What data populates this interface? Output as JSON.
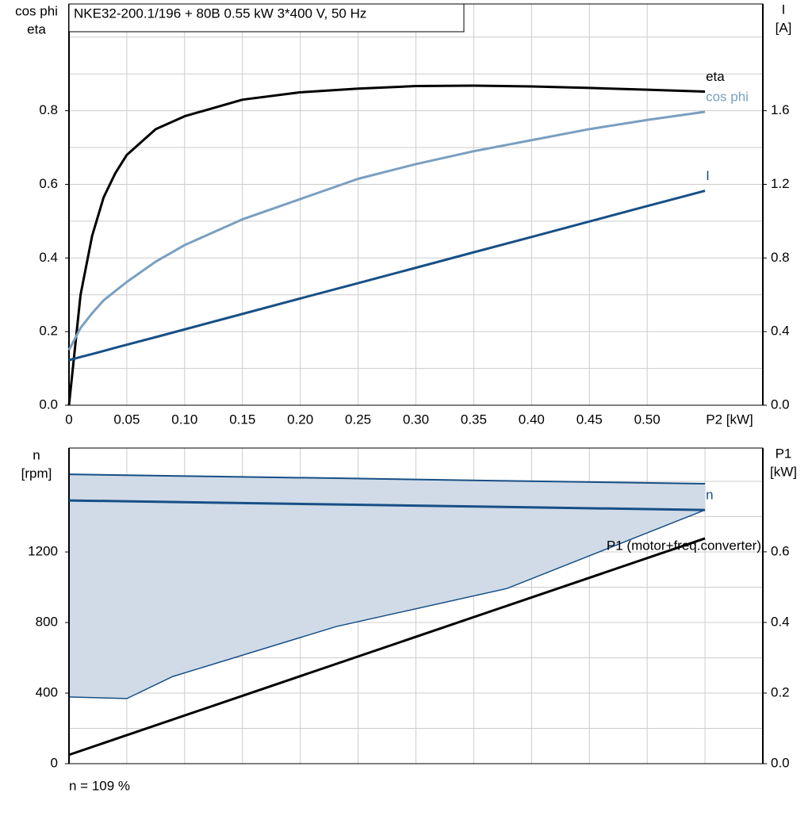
{
  "chart_data": [
    {
      "type": "line",
      "title": "NKE32-200.1/196 + 80B   0.55 kW   3*400 V, 50 Hz",
      "ylabel": [
        "cos phi",
        "eta"
      ],
      "y2label": [
        "I",
        "[A]"
      ],
      "xlabel": "P2 [kW]",
      "xlim": [
        0,
        0.6
      ],
      "ylim": [
        0,
        1.09
      ],
      "y2lim": [
        0,
        2.18
      ],
      "xticks": [
        0,
        0.05,
        {
          "value": 0.1,
          "label": "0.10"
        },
        0.15,
        {
          "value": 0.2,
          "label": "0.20"
        },
        0.25,
        {
          "value": 0.3,
          "label": "0.30"
        },
        0.35,
        {
          "value": 0.4,
          "label": "0.40"
        },
        0.45,
        {
          "value": 0.5,
          "label": "0.50"
        }
      ],
      "yticks": [
        {
          "value": 0,
          "label": "0.0"
        },
        0.2,
        0.4,
        0.6,
        0.8
      ],
      "ygrid": [
        0.1,
        0.3,
        0.5,
        0.7,
        0.9,
        1.0
      ],
      "y2ticks": [
        {
          "value": 0,
          "label": "0.0"
        },
        0.4,
        0.8,
        1.2,
        1.6
      ],
      "grid": true,
      "x": [
        0,
        0.01,
        0.02,
        0.03,
        0.04,
        0.05,
        0.075,
        0.1,
        0.15,
        0.2,
        0.25,
        0.3,
        0.35,
        0.4,
        0.45,
        0.5,
        0.55
      ],
      "series": [
        {
          "name": "eta",
          "color": "#000000",
          "values": [
            0,
            0.3,
            0.46,
            0.565,
            0.63,
            0.68,
            0.75,
            0.785,
            0.83,
            0.85,
            0.86,
            0.867,
            0.868,
            0.866,
            0.862,
            0.857,
            0.852
          ]
        },
        {
          "name": "cos phi",
          "color": "#7a9fc0",
          "values": [
            0.15,
            0.21,
            0.25,
            0.285,
            0.31,
            0.335,
            0.39,
            0.435,
            0.505,
            0.56,
            0.615,
            0.655,
            0.69,
            0.72,
            0.75,
            0.775,
            0.797
          ]
        },
        {
          "name": "I",
          "color": "#174f86",
          "axis": "y2",
          "values": [
            0.245,
            0.262,
            0.278,
            0.295,
            0.312,
            0.329,
            0.37,
            0.412,
            0.496,
            0.58,
            0.663,
            0.747,
            0.831,
            0.914,
            0.998,
            1.082,
            1.165
          ]
        }
      ]
    },
    {
      "type": "line",
      "ylabel": [
        "n",
        "[rpm]"
      ],
      "y2label": [
        "P1",
        "[kW]"
      ],
      "annotation": "n = 109 %",
      "xlim": [
        0,
        0.6
      ],
      "ylim": [
        0,
        1789
      ],
      "y2lim": [
        0,
        0.894
      ],
      "xticks": [
        0.05,
        0.1,
        0.15,
        0.2,
        0.25,
        0.3,
        0.35,
        0.4,
        0.45,
        0.5,
        0.55
      ],
      "xtick_labels": false,
      "yticks": [
        0,
        400,
        800,
        1200
      ],
      "ygrid": [
        200,
        600,
        1000,
        1400,
        1600
      ],
      "y2ticks": [
        {
          "value": 0,
          "label": "0.0"
        },
        0.2,
        0.4,
        0.6
      ],
      "grid": true,
      "band": {
        "color": "#d0dbe7",
        "edge": "#174f86",
        "x": [
          0,
          0.05,
          0.0897,
          0.2315,
          0.3788,
          0.55
        ],
        "upper": [
          1640,
          1635,
          1631,
          1618,
          1603,
          1587
        ],
        "lower": [
          378,
          369,
          494,
          778,
          993,
          1438
        ]
      },
      "x": [
        0,
        0.55
      ],
      "series": [
        {
          "name": "n",
          "color": "#174f86",
          "values": [
            1492,
            1438
          ]
        },
        {
          "name": "P1 (motor+freq.converter)",
          "color": "#000000",
          "axis": "y2",
          "values": [
            0.025,
            0.638
          ]
        }
      ]
    }
  ]
}
